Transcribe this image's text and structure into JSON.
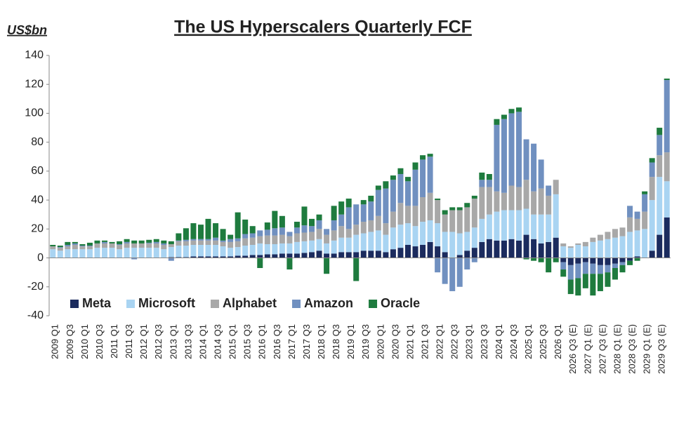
{
  "chart_data": {
    "type": "stacked-bar",
    "title": "The US Hyperscalers Quarterly FCF",
    "y_label": "US$bn",
    "categories": [
      "2009 Q1",
      null,
      "2009 Q3",
      null,
      "2010 Q1",
      null,
      "2010 Q3",
      null,
      "2011 Q1",
      null,
      "2011 Q3",
      null,
      "2012 Q1",
      null,
      "2012 Q3",
      null,
      "2013 Q1",
      null,
      "2013 Q3",
      null,
      "2014 Q1",
      null,
      "2014 Q3",
      null,
      "2015 Q1",
      null,
      "2015 Q3",
      null,
      "2016 Q1",
      null,
      "2016 Q3",
      null,
      "2017 Q1",
      null,
      "2017 Q3",
      null,
      "2018 Q1",
      null,
      "2018 Q3",
      null,
      "2019 Q1",
      null,
      "2019 Q3",
      null,
      "2020 Q1",
      null,
      "2020 Q3",
      null,
      "2021 Q1",
      null,
      "2021 Q3",
      null,
      "2022 Q1",
      null,
      "2022 Q3",
      null,
      "2023 Q1",
      null,
      "2023 Q3",
      null,
      "2024 Q1",
      null,
      "2024 Q3",
      null,
      "2025 Q1",
      null,
      "2025 Q3",
      null,
      "2026 Q1",
      null,
      "2026 Q3 (E)",
      null,
      "2027 Q1 (E)",
      null,
      "2027 Q3 (E)",
      null,
      "2028 Q1 (E)",
      null,
      "2028 Q3 (E)",
      null,
      "2029 Q1 (E)",
      null,
      "2029 Q3 (E)",
      null
    ],
    "series": [
      {
        "name": "Meta",
        "color": "#1b2b5e",
        "values": [
          0,
          0,
          0,
          0,
          0,
          0,
          0,
          0,
          0,
          0,
          0,
          0,
          0,
          0,
          0,
          0,
          0.5,
          0.5,
          0.5,
          1,
          1,
          1,
          1,
          1,
          1,
          1.5,
          1.5,
          2,
          2,
          2.5,
          2.5,
          3,
          3,
          3,
          3.5,
          4,
          5,
          3,
          3,
          4,
          4,
          4,
          5,
          5,
          5,
          4,
          6,
          7,
          9,
          8,
          9,
          11,
          8,
          4,
          0,
          2,
          5,
          7,
          11,
          13,
          12,
          12,
          13,
          12,
          16,
          13,
          10,
          11,
          14,
          -3,
          -5,
          -4,
          -3,
          -4,
          -5,
          -5,
          -4,
          -3,
          -2,
          1,
          0,
          5,
          16,
          28
        ]
      },
      {
        "name": "Microsoft",
        "color": "#a9d4f2",
        "values": [
          6,
          5,
          6,
          6,
          6,
          6,
          7,
          7,
          7,
          6,
          7,
          7,
          7,
          7,
          7,
          6,
          7,
          8,
          8,
          8,
          8,
          8,
          8,
          7,
          6,
          6,
          7,
          7,
          8,
          7,
          7,
          7,
          7,
          8,
          8,
          8,
          8,
          7,
          9,
          10,
          10,
          12,
          12,
          13,
          14,
          12,
          15,
          16,
          15,
          14,
          16,
          15,
          16,
          14,
          18,
          15,
          13,
          14,
          16,
          17,
          20,
          21,
          20,
          21,
          18,
          17,
          20,
          19,
          30,
          8,
          7,
          9,
          8,
          11,
          12,
          13,
          14,
          15,
          18,
          18,
          20,
          35,
          40,
          25
        ]
      },
      {
        "name": "Alphabet",
        "color": "#a8a8a8",
        "values": [
          2,
          2,
          2,
          3,
          2,
          2,
          3,
          3,
          3,
          3,
          3,
          3,
          3,
          3,
          3,
          3,
          2,
          3,
          3,
          3,
          3,
          3,
          3,
          3,
          4,
          4,
          5,
          5,
          5,
          6,
          6,
          6,
          5,
          6,
          6,
          6,
          7,
          6,
          7,
          8,
          6,
          7,
          8,
          8,
          10,
          8,
          11,
          15,
          12,
          14,
          17,
          19,
          16,
          12,
          15,
          16,
          17,
          20,
          22,
          19,
          14,
          12,
          17,
          16,
          20,
          16,
          18,
          13,
          10,
          2,
          1,
          1,
          3,
          3,
          4,
          5,
          6,
          6,
          10,
          8,
          12,
          16,
          15,
          20
        ]
      },
      {
        "name": "Amazon",
        "color": "#7090c0",
        "values": [
          0,
          0.5,
          1,
          1,
          0.5,
          0.5,
          0,
          1,
          0,
          0.5,
          1,
          -1,
          0,
          0.5,
          1,
          1,
          -2,
          0.5,
          1,
          1,
          1,
          1,
          2,
          1,
          2,
          2,
          3,
          3,
          4,
          4,
          5,
          5,
          3,
          4,
          5,
          4,
          6,
          4,
          7,
          8,
          15,
          14,
          12,
          13,
          18,
          24,
          22,
          20,
          17,
          25,
          26,
          25,
          -10,
          -18,
          -23,
          -20,
          -8,
          -3,
          5,
          5,
          46,
          51,
          50,
          52,
          28,
          33,
          20,
          7,
          0,
          -5,
          -10,
          -10,
          -8,
          -7,
          -6,
          -5,
          -3,
          -2,
          8,
          5,
          12,
          10,
          14,
          50
        ]
      },
      {
        "name": "Oracle",
        "color": "#1e7b3e",
        "values": [
          1,
          1,
          2,
          1,
          1,
          2,
          2,
          1,
          1,
          2,
          2,
          2,
          2,
          2,
          2,
          2,
          2,
          5,
          8,
          11,
          10,
          14,
          10,
          8,
          3,
          18,
          10,
          5,
          -7,
          5,
          12,
          8,
          -8,
          4,
          13,
          5,
          4,
          -11,
          10,
          9,
          6,
          -16,
          3,
          4,
          3,
          5,
          3,
          4,
          3,
          5,
          3,
          2,
          1,
          3,
          2,
          2,
          3,
          2,
          5,
          4,
          4,
          3,
          3,
          3,
          -1,
          -2,
          -3,
          -10,
          -3,
          -5,
          -10,
          -12,
          -10,
          -15,
          -12,
          -10,
          -8,
          -5,
          -3,
          -2,
          2,
          3,
          5,
          1
        ]
      }
    ],
    "ylim": [
      -40,
      140
    ],
    "yticks": [
      -40,
      -20,
      0,
      20,
      40,
      60,
      80,
      100,
      120,
      140
    ],
    "legend": "lower-left"
  }
}
